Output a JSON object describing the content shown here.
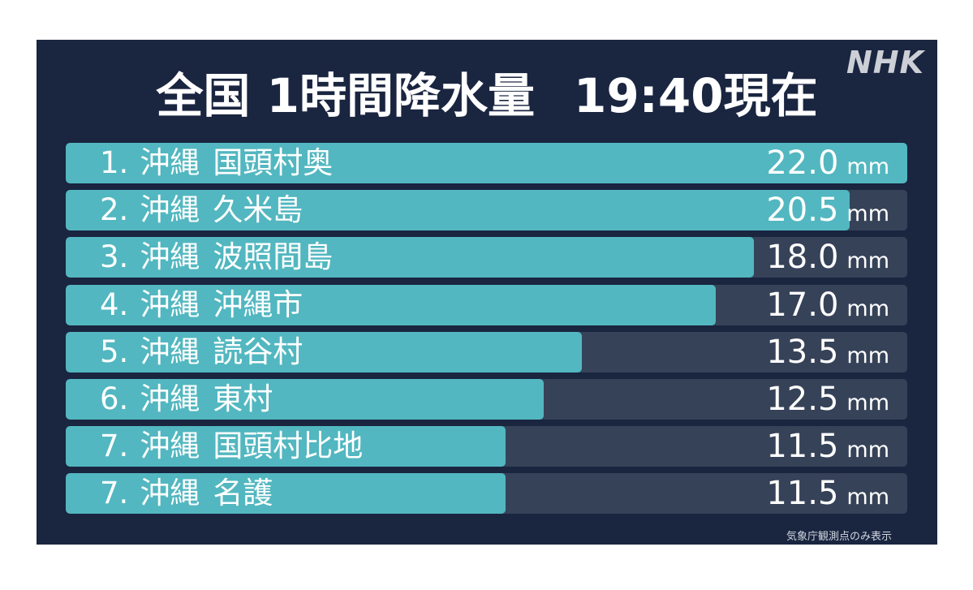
{
  "header": {
    "title": "全国 1時間降水量",
    "time": "19:40現在",
    "logo": "NHK"
  },
  "chart_data": {
    "type": "bar",
    "orientation": "horizontal",
    "title": "全国 1時間降水量",
    "unit": "mm",
    "xlim": [
      0,
      22.0
    ],
    "rows": [
      {
        "rank": "1.",
        "pref": "沖縄",
        "place": "国頭村奥",
        "value": 22.0,
        "value_label": "22.0"
      },
      {
        "rank": "2.",
        "pref": "沖縄",
        "place": "久米島",
        "value": 20.5,
        "value_label": "20.5"
      },
      {
        "rank": "3.",
        "pref": "沖縄",
        "place": "波照間島",
        "value": 18.0,
        "value_label": "18.0"
      },
      {
        "rank": "4.",
        "pref": "沖縄",
        "place": "沖縄市",
        "value": 17.0,
        "value_label": "17.0"
      },
      {
        "rank": "5.",
        "pref": "沖縄",
        "place": "読谷村",
        "value": 13.5,
        "value_label": "13.5"
      },
      {
        "rank": "6.",
        "pref": "沖縄",
        "place": "東村",
        "value": 12.5,
        "value_label": "12.5"
      },
      {
        "rank": "7.",
        "pref": "沖縄",
        "place": "国頭村比地",
        "value": 11.5,
        "value_label": "11.5"
      },
      {
        "rank": "7.",
        "pref": "沖縄",
        "place": "名護",
        "value": 11.5,
        "value_label": "11.5"
      }
    ]
  },
  "footer": {
    "note": "気象庁観測点のみ表示"
  },
  "colors": {
    "background": "#1a2540",
    "bar_fill": "#52b7c0",
    "bar_track": "#364258",
    "text": "#ffffff"
  }
}
